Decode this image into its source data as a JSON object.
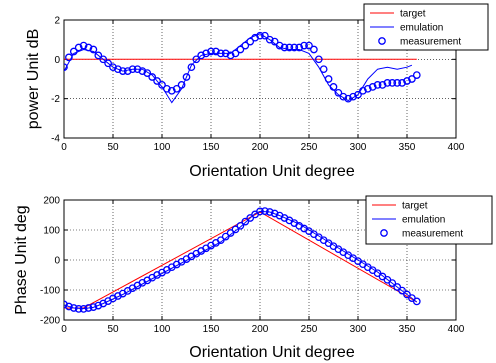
{
  "colors": {
    "target": "#ff0000",
    "emulation": "#0000ff",
    "measurement": "#0000ff"
  },
  "chart_data": [
    {
      "type": "line",
      "title": "",
      "xlabel": "Orientation Unit degree",
      "ylabel": "power Unit dB",
      "xlim": [
        0,
        400
      ],
      "ylim": [
        -4,
        2
      ],
      "xticks": [
        "0",
        "50",
        "100",
        "150",
        "200",
        "250",
        "300",
        "350",
        "400"
      ],
      "yticks": [
        "-4",
        "-2",
        "0",
        "2"
      ],
      "grid": true,
      "legend_position": "top-right",
      "series": [
        {
          "name": "target",
          "style": "line",
          "x": [
            0,
            360
          ],
          "y": [
            0,
            0
          ]
        },
        {
          "name": "emulation",
          "style": "line",
          "x": [
            0,
            10,
            20,
            30,
            40,
            50,
            60,
            70,
            80,
            90,
            100,
            110,
            120,
            130,
            140,
            150,
            160,
            170,
            180,
            190,
            200,
            210,
            220,
            230,
            240,
            250,
            260,
            270,
            280,
            290,
            300,
            310,
            320,
            330,
            340,
            350,
            355
          ],
          "y": [
            -0.6,
            0.3,
            0.5,
            0.4,
            0.0,
            -0.4,
            -0.6,
            -0.5,
            -0.5,
            -0.8,
            -1.4,
            -2.2,
            -1.5,
            -0.3,
            0.2,
            0.3,
            0.3,
            0.3,
            0.7,
            1.1,
            1.3,
            1.0,
            0.6,
            0.5,
            0.5,
            0.3,
            -0.4,
            -1.3,
            -1.8,
            -2.1,
            -1.8,
            -1.0,
            -0.5,
            -0.4,
            -0.5,
            -0.4,
            -0.3
          ]
        },
        {
          "name": "measurement",
          "style": "markers",
          "x": [
            0,
            5,
            10,
            15,
            20,
            25,
            30,
            35,
            40,
            45,
            50,
            55,
            60,
            65,
            70,
            75,
            80,
            85,
            90,
            95,
            100,
            105,
            110,
            115,
            120,
            125,
            130,
            135,
            140,
            145,
            150,
            155,
            160,
            165,
            170,
            175,
            180,
            185,
            190,
            195,
            200,
            205,
            210,
            215,
            220,
            225,
            230,
            235,
            240,
            245,
            250,
            255,
            260,
            265,
            270,
            275,
            280,
            285,
            290,
            295,
            300,
            305,
            310,
            315,
            320,
            325,
            330,
            335,
            340,
            345,
            350,
            355,
            360
          ],
          "y": [
            -0.4,
            0.1,
            0.4,
            0.6,
            0.7,
            0.6,
            0.5,
            0.2,
            0.0,
            -0.2,
            -0.4,
            -0.5,
            -0.6,
            -0.6,
            -0.5,
            -0.5,
            -0.6,
            -0.7,
            -0.9,
            -1.1,
            -1.3,
            -1.5,
            -1.6,
            -1.5,
            -1.3,
            -0.9,
            -0.4,
            0.0,
            0.2,
            0.3,
            0.4,
            0.4,
            0.3,
            0.3,
            0.2,
            0.3,
            0.5,
            0.7,
            0.9,
            1.1,
            1.2,
            1.2,
            1.0,
            0.9,
            0.7,
            0.6,
            0.6,
            0.6,
            0.6,
            0.7,
            0.7,
            0.5,
            0.0,
            -0.5,
            -1.0,
            -1.4,
            -1.7,
            -1.9,
            -2.0,
            -1.9,
            -1.8,
            -1.6,
            -1.5,
            -1.4,
            -1.3,
            -1.3,
            -1.2,
            -1.2,
            -1.2,
            -1.2,
            -1.1,
            -1.0,
            -0.8
          ]
        }
      ]
    },
    {
      "type": "line",
      "title": "",
      "xlabel": "Orientation Unit degree",
      "ylabel": "Phase Unit deg",
      "xlim": [
        0,
        400
      ],
      "ylim": [
        -200,
        200
      ],
      "xticks": [
        "0",
        "50",
        "100",
        "150",
        "200",
        "250",
        "300",
        "350",
        "400"
      ],
      "yticks": [
        "-200",
        "-100",
        "0",
        "100",
        "200"
      ],
      "grid": true,
      "legend_position": "top-right",
      "series": [
        {
          "name": "target",
          "style": "line",
          "x": [
            0,
            20,
            200,
            360
          ],
          "y": [
            -160,
            -160,
            160,
            -140
          ]
        },
        {
          "name": "emulation",
          "style": "line",
          "x": [
            0,
            10,
            20,
            30,
            40,
            60,
            80,
            100,
            120,
            140,
            160,
            180,
            195,
            200,
            210,
            220,
            240,
            260,
            280,
            300,
            320,
            340,
            360
          ],
          "y": [
            -150,
            -160,
            -162,
            -158,
            -145,
            -115,
            -80,
            -45,
            -10,
            25,
            60,
            110,
            155,
            162,
            160,
            148,
            120,
            80,
            40,
            0,
            -40,
            -90,
            -140
          ]
        },
        {
          "name": "measurement",
          "style": "markers",
          "x": [
            0,
            5,
            10,
            15,
            20,
            25,
            30,
            35,
            40,
            45,
            50,
            55,
            60,
            65,
            70,
            75,
            80,
            85,
            90,
            95,
            100,
            105,
            110,
            115,
            120,
            125,
            130,
            135,
            140,
            145,
            150,
            155,
            160,
            165,
            170,
            175,
            180,
            185,
            190,
            195,
            200,
            205,
            210,
            215,
            220,
            225,
            230,
            235,
            240,
            245,
            250,
            255,
            260,
            265,
            270,
            275,
            280,
            285,
            290,
            295,
            300,
            305,
            310,
            315,
            320,
            325,
            330,
            335,
            340,
            345,
            350,
            355,
            360
          ],
          "y": [
            -148,
            -155,
            -160,
            -163,
            -163,
            -160,
            -157,
            -152,
            -145,
            -137,
            -128,
            -120,
            -112,
            -103,
            -94,
            -85,
            -76,
            -68,
            -59,
            -50,
            -42,
            -33,
            -24,
            -15,
            -6,
            3,
            12,
            21,
            30,
            39,
            48,
            57,
            66,
            78,
            90,
            102,
            114,
            128,
            140,
            152,
            162,
            163,
            160,
            155,
            148,
            140,
            132,
            123,
            114,
            105,
            96,
            86,
            76,
            66,
            56,
            46,
            36,
            26,
            16,
            6,
            -4,
            -14,
            -24,
            -34,
            -44,
            -55,
            -66,
            -77,
            -90,
            -102,
            -115,
            -127,
            -138
          ]
        }
      ]
    }
  ]
}
